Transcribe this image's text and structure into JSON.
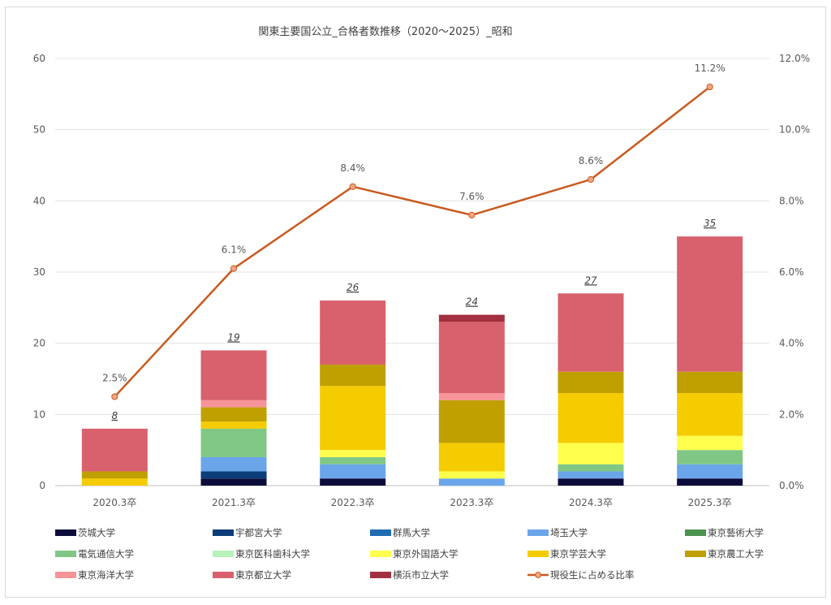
{
  "chart_data": {
    "type": "bar",
    "title": "関東主要国公立_合格者数推移（2020～2025）_昭和",
    "categories": [
      "2020.3卒",
      "2021.3卒",
      "2022.3卒",
      "2023.3卒",
      "2024.3卒",
      "2025.3卒"
    ],
    "ylim": [
      0,
      60
    ],
    "y2lim": [
      0,
      12
    ],
    "y_ticks": [
      "0",
      "10",
      "20",
      "30",
      "40",
      "50",
      "60"
    ],
    "y2_ticks": [
      "0.0%",
      "2.0%",
      "4.0%",
      "6.0%",
      "8.0%",
      "10.0%",
      "12.0%"
    ],
    "grid": true,
    "legend_position": "bottom",
    "series": [
      {
        "name": "茨城大学",
        "color": "#0c0c3c",
        "values": [
          0,
          1,
          1,
          0,
          1,
          1
        ]
      },
      {
        "name": "宇都宮大学",
        "color": "#0b3d78",
        "values": [
          0,
          1,
          0,
          0,
          0,
          0
        ]
      },
      {
        "name": "群馬大学",
        "color": "#1f6cb3",
        "values": [
          0,
          0,
          0,
          0,
          0,
          0
        ]
      },
      {
        "name": "埼玉大学",
        "color": "#6aa5ea",
        "values": [
          0,
          2,
          2,
          1,
          1,
          2
        ]
      },
      {
        "name": "東京藝術大学",
        "color": "#4a944f",
        "values": [
          0,
          0,
          0,
          0,
          0,
          0
        ]
      },
      {
        "name": "電気通信大学",
        "color": "#80c786",
        "values": [
          0,
          4,
          1,
          0,
          1,
          2
        ]
      },
      {
        "name": "東京医科歯科大学",
        "color": "#b6f2b9",
        "values": [
          0,
          0,
          0,
          0,
          0,
          0
        ]
      },
      {
        "name": "東京外国語大学",
        "color": "#ffff4d",
        "values": [
          0,
          0,
          1,
          1,
          3,
          2
        ]
      },
      {
        "name": "東京学芸大学",
        "color": "#f4cc00",
        "values": [
          1,
          1,
          9,
          4,
          7,
          6
        ]
      },
      {
        "name": "東京農工大学",
        "color": "#bfa000",
        "values": [
          1,
          2,
          3,
          6,
          3,
          3
        ]
      },
      {
        "name": "東京海洋大学",
        "color": "#f79499",
        "values": [
          0,
          1,
          0,
          1,
          0,
          0
        ]
      },
      {
        "name": "東京都立大学",
        "color": "#d8616d",
        "values": [
          6,
          7,
          9,
          10,
          11,
          19
        ]
      },
      {
        "name": "横浜市立大学",
        "color": "#a3303f",
        "values": [
          0,
          0,
          0,
          1,
          0,
          0
        ]
      }
    ],
    "totals": [
      "8",
      "19",
      "26",
      "24",
      "27",
      "35"
    ],
    "line_series": {
      "name": "現役生に占める比率",
      "color": "#c85a1f",
      "values": [
        2.5,
        6.1,
        8.4,
        7.6,
        8.6,
        11.2
      ],
      "labels": [
        "2.5%",
        "6.1%",
        "8.4%",
        "7.6%",
        "8.6%",
        "11.2%"
      ]
    }
  }
}
